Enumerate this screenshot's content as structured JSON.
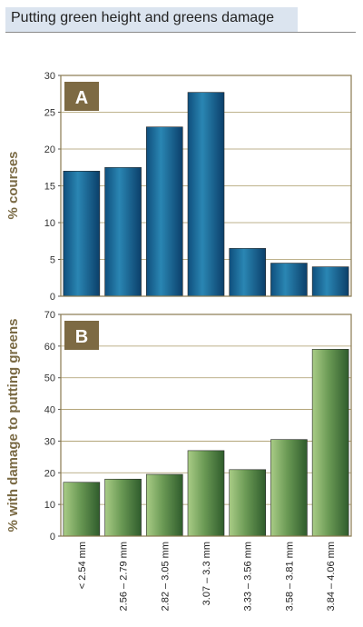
{
  "title": "Putting green height and greens damage",
  "chart_data": [
    {
      "type": "bar",
      "panel_label": "A",
      "ylabel": "% courses",
      "categories": [
        "< 2.54 mm",
        "2.56 – 2.79 mm",
        "2.82 – 3.05 mm",
        "3.07 – 3.3 mm",
        "3.33 – 3.56 mm",
        "3.58 – 3.81 mm",
        "3.84 – 4.06 mm"
      ],
      "values": [
        17,
        17.5,
        23,
        27.7,
        6.5,
        4.5,
        4
      ],
      "ylim": [
        0,
        30
      ],
      "yticks": [
        0,
        5,
        10,
        15,
        20,
        25,
        30
      ],
      "grid": true,
      "bar_color": "#1c6e9a"
    },
    {
      "type": "bar",
      "panel_label": "B",
      "ylabel": "% with damage to putting greens",
      "categories": [
        "< 2.54 mm",
        "2.56 – 2.79 mm",
        "2.82 – 3.05 mm",
        "3.07 – 3.3 mm",
        "3.33 – 3.56 mm",
        "3.58 – 3.81 mm",
        "3.84 – 4.06 mm"
      ],
      "values": [
        17,
        18,
        19.5,
        27,
        21,
        30.5,
        59
      ],
      "ylim": [
        0,
        70
      ],
      "yticks": [
        0,
        10,
        20,
        30,
        40,
        50,
        60,
        70
      ],
      "grid": true,
      "bar_color": "#4b7a3e"
    }
  ],
  "colors": {
    "badge": "#7d6a43",
    "title_bg": "#dbe4ef"
  }
}
